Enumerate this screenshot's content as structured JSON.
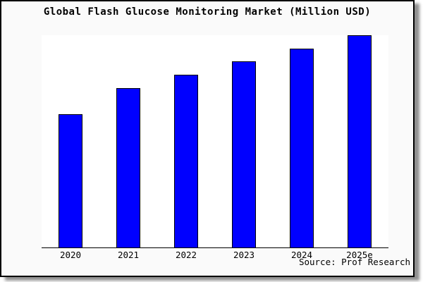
{
  "chart_data": {
    "type": "bar",
    "title": "Global Flash Glucose Monitoring Market (Million USD)",
    "categories": [
      "2020",
      "2021",
      "2022",
      "2023",
      "2024",
      "2025e"
    ],
    "values": [
      62.8,
      75.1,
      81.4,
      87.7,
      93.7,
      100
    ],
    "values_note": "relative bar heights as % of tallest bar; y-axis has no tick labels in the chart",
    "xlabel": "",
    "ylabel": "",
    "ylim": [
      0,
      100
    ],
    "grid": false,
    "legend_position": "none",
    "source": "Source: Prof Research",
    "colors": {
      "bar_fill": "#0000ff",
      "bar_border": "#000000",
      "plot_background": "#ffffff",
      "frame_background": "#fafafa",
      "frame_border": "#000000",
      "title_color": "#000000"
    }
  }
}
